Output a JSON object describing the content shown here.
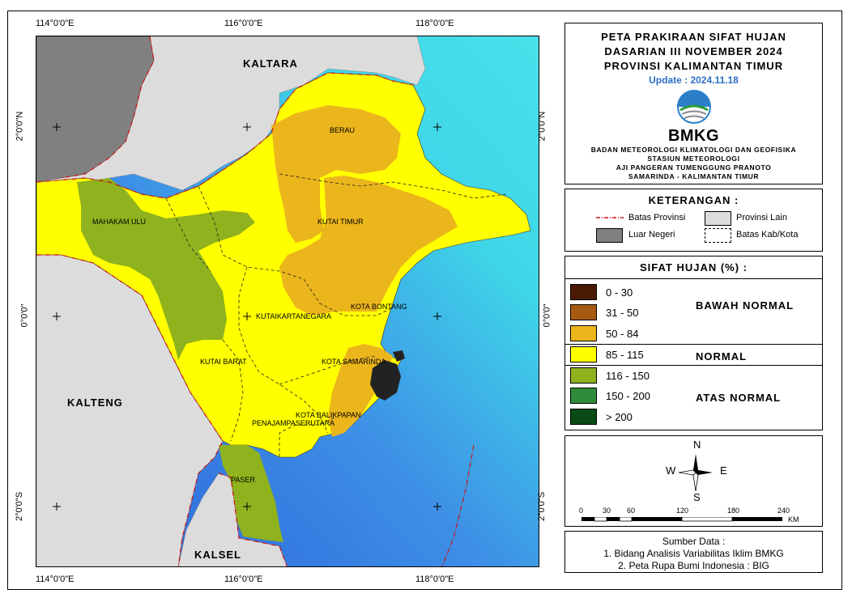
{
  "coords": {
    "top": [
      "114°0'0\"E",
      "116°0'0\"E",
      "118°0'0\"E"
    ],
    "bottom": [
      "114°0'0\"E",
      "116°0'0\"E",
      "118°0'0\"E"
    ],
    "left": [
      "2°0'0\"N",
      "0°0'0\"",
      "2°0'0\"S"
    ],
    "right": [
      "2°0'0\"N",
      "0°0'0\"",
      "2°0'0\"S"
    ]
  },
  "map_labels": {
    "kaltara": "KALTARA",
    "kalteng": "KALTENG",
    "kalsel": "KALSEL",
    "berau": "BERAU",
    "kutai_timur": "KUTAI TIMUR",
    "mahakam_ulu": "MAHAKAM ULU",
    "kota_bontang": "KOTA BONTANG",
    "kutai_kartanegara": "KUTAIKARTANEGARA",
    "kutai_barat": "KUTAI BARAT",
    "kota_samarinda": "KOTA SAMARINDA",
    "kota_balikpapan": "KOTA BALIKPAPAN",
    "penajam": "PENAJAMPASERUTARA",
    "paser": "PASER"
  },
  "title": {
    "line1": "PETA PRAKIRAAN SIFAT HUJAN",
    "line2": "DASARIAN III NOVEMBER 2024",
    "line3": "PROVINSI KALIMANTAN TIMUR",
    "update": "Update : 2024.11.18",
    "logo_text": "BMKG",
    "org1": "BADAN METEOROLOGI KLIMATOLOGI DAN GEOFISIKA",
    "org2": "STASIUN METEOROLOGI",
    "org3": "AJI PANGERAN TUMENGGUNG PRANOTO",
    "org4": "SAMARINDA - KALIMANTAN TIMUR"
  },
  "keterangan": {
    "header": "KETERANGAN :",
    "batas_provinsi": "Batas Provinsi",
    "provinsi_lain": "Provinsi Lain",
    "luar_negeri": "Luar Negeri",
    "batas_kab": "Batas Kab/Kota"
  },
  "sifat_hujan": {
    "header": "SIFAT HUJAN (%) :",
    "classes": [
      {
        "label": "0 - 30",
        "color": "#4a1a05"
      },
      {
        "label": "31 - 50",
        "color": "#a65a10"
      },
      {
        "label": "50 - 84",
        "color": "#ebb51c"
      },
      {
        "label": "85 - 115",
        "color": "#ffff00"
      },
      {
        "label": "116 - 150",
        "color": "#8fb21e"
      },
      {
        "label": "150 - 200",
        "color": "#2f8c3a"
      },
      {
        "label": "> 200",
        "color": "#0a4a14"
      }
    ],
    "bawah_normal": "BAWAH NORMAL",
    "normal": "NORMAL",
    "atas_normal": "ATAS NORMAL"
  },
  "compass": {
    "n": "N",
    "s": "S",
    "e": "E",
    "w": "W"
  },
  "scale": {
    "ticks": [
      "0",
      "30",
      "60",
      "120",
      "180",
      "240"
    ],
    "unit": "KM"
  },
  "source": {
    "title": "Sumber Data :",
    "line1": "1. Bidang Analisis Variabilitas Iklim BMKG",
    "line2": "2. Peta Rupa Bumi Indonesia : BIG"
  },
  "colors": {
    "sea_deep": "#2a5fd8",
    "sea_shallow": "#3fd6e8",
    "other_province": "#dcdcdc",
    "foreign": "#808080",
    "province_border": "#cc1111"
  }
}
